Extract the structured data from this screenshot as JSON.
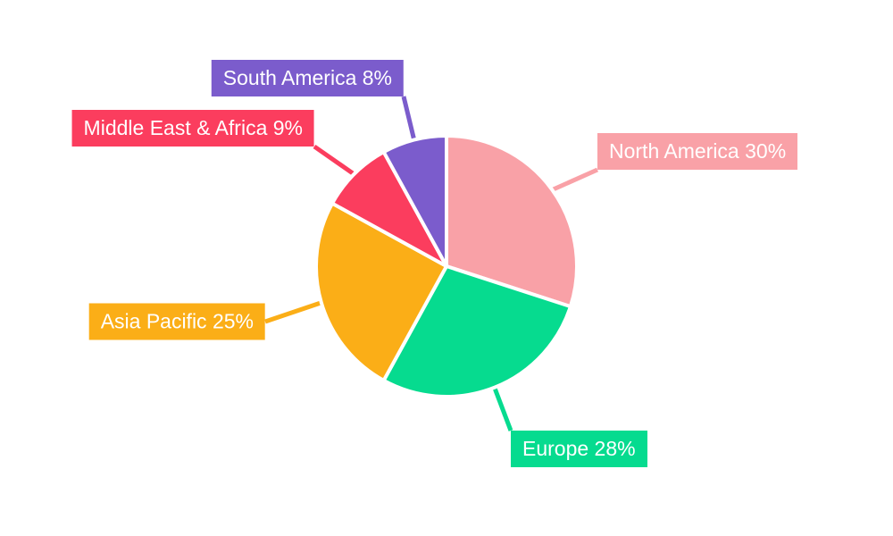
{
  "chart_data": {
    "type": "pie",
    "title": "",
    "legend": "none",
    "background": "#ffffff",
    "label_text_color": "#ffffff",
    "start_angle_deg": 0,
    "direction": "clockwise",
    "total": 100,
    "categories": [
      "North America",
      "Europe",
      "Asia Pacific",
      "Middle East & Africa",
      "South America"
    ],
    "values": [
      30,
      28,
      25,
      9,
      8
    ],
    "slices": [
      {
        "label": "North America",
        "value": 30,
        "display": "North America 30%",
        "color": "#F9A1A7"
      },
      {
        "label": "Europe",
        "value": 28,
        "display": "Europe 28%",
        "color": "#06DB8F"
      },
      {
        "label": "Asia Pacific",
        "value": 25,
        "display": "Asia Pacific 25%",
        "color": "#FBAE17"
      },
      {
        "label": "Middle East & Africa",
        "value": 9,
        "display": "Middle East & Africa 9%",
        "color": "#FB3D5E"
      },
      {
        "label": "South America",
        "value": 8,
        "display": "South America 8%",
        "color": "#7B5CCC"
      }
    ]
  }
}
